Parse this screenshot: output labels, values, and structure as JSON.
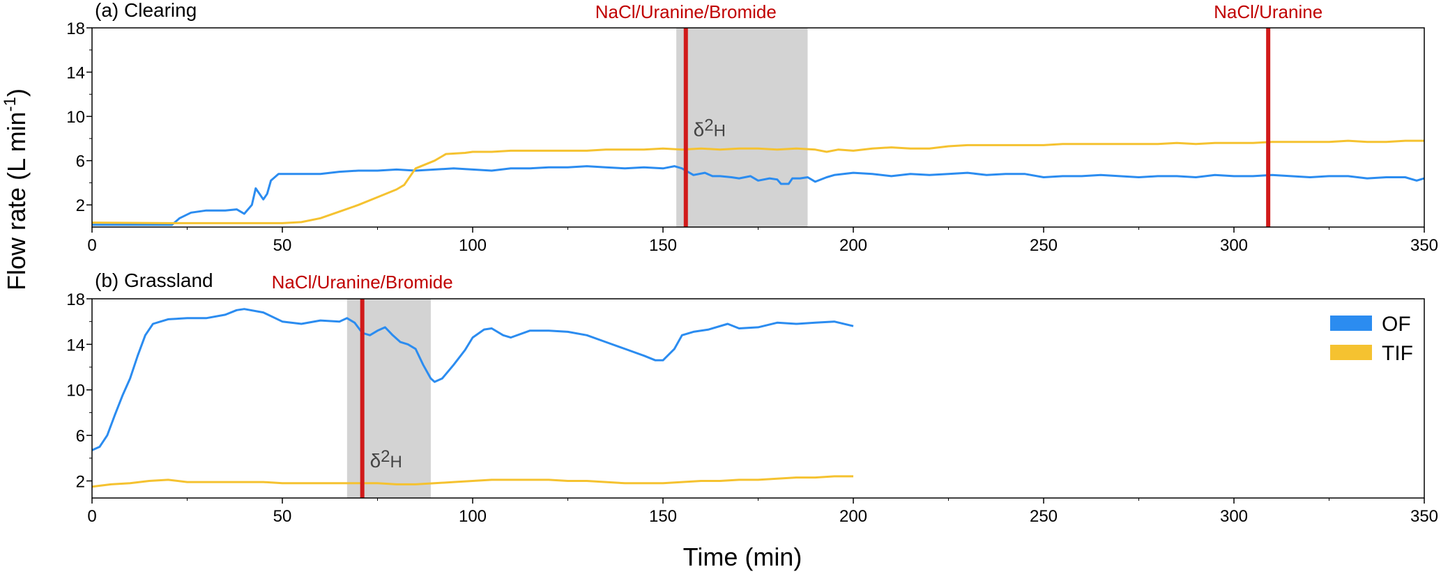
{
  "figure": {
    "ylabel_main": "Flow rate (L min",
    "ylabel_sup": "-1",
    "ylabel_close": ")",
    "xlabel": "Time (min)"
  },
  "legend": {
    "items": [
      {
        "label": "OF",
        "color": "#2b8cf0"
      },
      {
        "label": "TIF",
        "color": "#f5c230"
      }
    ]
  },
  "chart_data": [
    {
      "type": "line",
      "panel_label": "(a) Clearing",
      "xlim": [
        0,
        350
      ],
      "ylim": [
        0,
        18
      ],
      "xticks": [
        0,
        50,
        100,
        150,
        200,
        250,
        300,
        350
      ],
      "yticks": [
        2,
        6,
        10,
        14,
        18
      ],
      "shaded_region": {
        "x": [
          153.5,
          188
        ],
        "label": "δ",
        "label_sup": "2",
        "label_sub": "H",
        "label_at": [
          158,
          8.2
        ]
      },
      "events": [
        {
          "x": 156,
          "label": "NaCl/Uranine/Bromide"
        },
        {
          "x": 309,
          "label": "NaCl/Uranine"
        }
      ],
      "series": [
        {
          "name": "OF",
          "color": "#2b8cf0",
          "points": [
            [
              0,
              0.2
            ],
            [
              21,
              0.2
            ],
            [
              23,
              0.8
            ],
            [
              26,
              1.3
            ],
            [
              30,
              1.5
            ],
            [
              35,
              1.5
            ],
            [
              38,
              1.6
            ],
            [
              40,
              1.2
            ],
            [
              42,
              2
            ],
            [
              43,
              3.5
            ],
            [
              45,
              2.5
            ],
            [
              46,
              3.0
            ],
            [
              47,
              4.2
            ],
            [
              49,
              4.8
            ],
            [
              55,
              4.8
            ],
            [
              60,
              4.8
            ],
            [
              65,
              5.0
            ],
            [
              70,
              5.1
            ],
            [
              75,
              5.1
            ],
            [
              80,
              5.2
            ],
            [
              85,
              5.1
            ],
            [
              90,
              5.2
            ],
            [
              95,
              5.3
            ],
            [
              100,
              5.2
            ],
            [
              105,
              5.1
            ],
            [
              110,
              5.3
            ],
            [
              115,
              5.3
            ],
            [
              120,
              5.4
            ],
            [
              125,
              5.4
            ],
            [
              130,
              5.5
            ],
            [
              135,
              5.4
            ],
            [
              140,
              5.3
            ],
            [
              145,
              5.4
            ],
            [
              150,
              5.3
            ],
            [
              153,
              5.5
            ],
            [
              155,
              5.3
            ],
            [
              158,
              4.7
            ],
            [
              161,
              4.9
            ],
            [
              163,
              4.6
            ],
            [
              165,
              4.6
            ],
            [
              168,
              4.5
            ],
            [
              170,
              4.4
            ],
            [
              173,
              4.6
            ],
            [
              175,
              4.2
            ],
            [
              178,
              4.4
            ],
            [
              180,
              4.3
            ],
            [
              181,
              3.9
            ],
            [
              183,
              3.9
            ],
            [
              184,
              4.4
            ],
            [
              186,
              4.4
            ],
            [
              188,
              4.5
            ],
            [
              190,
              4.1
            ],
            [
              193,
              4.5
            ],
            [
              195,
              4.7
            ],
            [
              200,
              4.9
            ],
            [
              205,
              4.8
            ],
            [
              210,
              4.6
            ],
            [
              215,
              4.8
            ],
            [
              220,
              4.7
            ],
            [
              225,
              4.8
            ],
            [
              230,
              4.9
            ],
            [
              235,
              4.7
            ],
            [
              240,
              4.8
            ],
            [
              245,
              4.8
            ],
            [
              250,
              4.5
            ],
            [
              255,
              4.6
            ],
            [
              260,
              4.6
            ],
            [
              265,
              4.7
            ],
            [
              270,
              4.6
            ],
            [
              275,
              4.5
            ],
            [
              280,
              4.6
            ],
            [
              285,
              4.6
            ],
            [
              290,
              4.5
            ],
            [
              295,
              4.7
            ],
            [
              300,
              4.6
            ],
            [
              305,
              4.6
            ],
            [
              310,
              4.7
            ],
            [
              315,
              4.6
            ],
            [
              320,
              4.5
            ],
            [
              325,
              4.6
            ],
            [
              330,
              4.6
            ],
            [
              335,
              4.4
            ],
            [
              340,
              4.5
            ],
            [
              345,
              4.5
            ],
            [
              348,
              4.2
            ],
            [
              350,
              4.4
            ]
          ]
        },
        {
          "name": "TIF",
          "color": "#f5c230",
          "points": [
            [
              0,
              0.4
            ],
            [
              20,
              0.35
            ],
            [
              30,
              0.35
            ],
            [
              40,
              0.35
            ],
            [
              50,
              0.35
            ],
            [
              55,
              0.45
            ],
            [
              60,
              0.8
            ],
            [
              65,
              1.4
            ],
            [
              70,
              2.0
            ],
            [
              75,
              2.7
            ],
            [
              80,
              3.4
            ],
            [
              82,
              3.8
            ],
            [
              85,
              5.3
            ],
            [
              90,
              6.0
            ],
            [
              93,
              6.6
            ],
            [
              98,
              6.7
            ],
            [
              100,
              6.8
            ],
            [
              105,
              6.8
            ],
            [
              110,
              6.9
            ],
            [
              115,
              6.9
            ],
            [
              120,
              6.9
            ],
            [
              125,
              6.9
            ],
            [
              130,
              6.9
            ],
            [
              135,
              7.0
            ],
            [
              140,
              7.0
            ],
            [
              145,
              7.0
            ],
            [
              150,
              7.1
            ],
            [
              155,
              7.0
            ],
            [
              160,
              7.1
            ],
            [
              165,
              7.0
            ],
            [
              170,
              7.1
            ],
            [
              175,
              7.1
            ],
            [
              180,
              7.0
            ],
            [
              185,
              7.1
            ],
            [
              190,
              7.0
            ],
            [
              193,
              6.8
            ],
            [
              196,
              7.0
            ],
            [
              200,
              6.9
            ],
            [
              205,
              7.1
            ],
            [
              210,
              7.2
            ],
            [
              215,
              7.1
            ],
            [
              220,
              7.1
            ],
            [
              225,
              7.3
            ],
            [
              230,
              7.4
            ],
            [
              235,
              7.4
            ],
            [
              240,
              7.4
            ],
            [
              245,
              7.4
            ],
            [
              250,
              7.4
            ],
            [
              255,
              7.5
            ],
            [
              260,
              7.5
            ],
            [
              265,
              7.5
            ],
            [
              270,
              7.5
            ],
            [
              275,
              7.5
            ],
            [
              280,
              7.5
            ],
            [
              285,
              7.6
            ],
            [
              290,
              7.5
            ],
            [
              295,
              7.6
            ],
            [
              300,
              7.6
            ],
            [
              305,
              7.6
            ],
            [
              310,
              7.7
            ],
            [
              315,
              7.7
            ],
            [
              320,
              7.7
            ],
            [
              325,
              7.7
            ],
            [
              330,
              7.8
            ],
            [
              335,
              7.7
            ],
            [
              340,
              7.7
            ],
            [
              345,
              7.8
            ],
            [
              350,
              7.8
            ]
          ]
        }
      ]
    },
    {
      "type": "line",
      "panel_label": "(b) Grassland",
      "xlim": [
        0,
        350
      ],
      "ylim": [
        0.5,
        18
      ],
      "xticks": [
        0,
        50,
        100,
        150,
        200,
        250,
        300,
        350
      ],
      "yticks": [
        2,
        6,
        10,
        14,
        18
      ],
      "shaded_region": {
        "x": [
          67,
          89
        ],
        "label": "δ",
        "label_sup": "2",
        "label_sub": "H",
        "label_at": [
          73,
          3.2
        ]
      },
      "events": [
        {
          "x": 71,
          "label": "NaCl/Uranine/Bromide"
        }
      ],
      "series": [
        {
          "name": "OF",
          "color": "#2b8cf0",
          "points": [
            [
              0,
              4.7
            ],
            [
              2,
              5.0
            ],
            [
              4,
              6.0
            ],
            [
              6,
              7.8
            ],
            [
              8,
              9.5
            ],
            [
              10,
              11.0
            ],
            [
              12,
              13.0
            ],
            [
              14,
              14.8
            ],
            [
              16,
              15.8
            ],
            [
              18,
              16.0
            ],
            [
              20,
              16.2
            ],
            [
              25,
              16.3
            ],
            [
              30,
              16.3
            ],
            [
              35,
              16.6
            ],
            [
              38,
              17.0
            ],
            [
              40,
              17.1
            ],
            [
              45,
              16.8
            ],
            [
              50,
              16.0
            ],
            [
              55,
              15.8
            ],
            [
              60,
              16.1
            ],
            [
              65,
              16.0
            ],
            [
              67,
              16.3
            ],
            [
              69,
              15.9
            ],
            [
              71,
              15.0
            ],
            [
              73,
              14.8
            ],
            [
              75,
              15.2
            ],
            [
              77,
              15.5
            ],
            [
              79,
              14.8
            ],
            [
              81,
              14.2
            ],
            [
              83,
              14.0
            ],
            [
              85,
              13.6
            ],
            [
              87,
              12.2
            ],
            [
              89,
              11.0
            ],
            [
              90,
              10.7
            ],
            [
              92,
              11.0
            ],
            [
              95,
              12.2
            ],
            [
              98,
              13.5
            ],
            [
              100,
              14.6
            ],
            [
              103,
              15.3
            ],
            [
              105,
              15.4
            ],
            [
              108,
              14.8
            ],
            [
              110,
              14.6
            ],
            [
              115,
              15.2
            ],
            [
              120,
              15.2
            ],
            [
              125,
              15.1
            ],
            [
              130,
              14.8
            ],
            [
              135,
              14.2
            ],
            [
              140,
              13.6
            ],
            [
              145,
              13.0
            ],
            [
              148,
              12.6
            ],
            [
              150,
              12.6
            ],
            [
              153,
              13.6
            ],
            [
              155,
              14.8
            ],
            [
              158,
              15.1
            ],
            [
              162,
              15.3
            ],
            [
              167,
              15.8
            ],
            [
              170,
              15.4
            ],
            [
              175,
              15.5
            ],
            [
              180,
              15.9
            ],
            [
              185,
              15.8
            ],
            [
              190,
              15.9
            ],
            [
              195,
              16.0
            ],
            [
              200,
              15.6
            ]
          ]
        },
        {
          "name": "TIF",
          "color": "#f5c230",
          "points": [
            [
              0,
              1.5
            ],
            [
              5,
              1.7
            ],
            [
              10,
              1.8
            ],
            [
              15,
              2.0
            ],
            [
              20,
              2.1
            ],
            [
              25,
              1.9
            ],
            [
              30,
              1.9
            ],
            [
              35,
              1.9
            ],
            [
              40,
              1.9
            ],
            [
              45,
              1.9
            ],
            [
              50,
              1.8
            ],
            [
              55,
              1.8
            ],
            [
              60,
              1.8
            ],
            [
              65,
              1.8
            ],
            [
              70,
              1.8
            ],
            [
              75,
              1.8
            ],
            [
              80,
              1.7
            ],
            [
              85,
              1.7
            ],
            [
              90,
              1.8
            ],
            [
              95,
              1.9
            ],
            [
              100,
              2.0
            ],
            [
              105,
              2.1
            ],
            [
              110,
              2.1
            ],
            [
              115,
              2.1
            ],
            [
              120,
              2.1
            ],
            [
              125,
              2.0
            ],
            [
              130,
              2.0
            ],
            [
              135,
              1.9
            ],
            [
              140,
              1.8
            ],
            [
              145,
              1.8
            ],
            [
              150,
              1.8
            ],
            [
              155,
              1.9
            ],
            [
              160,
              2.0
            ],
            [
              165,
              2.0
            ],
            [
              170,
              2.1
            ],
            [
              175,
              2.1
            ],
            [
              180,
              2.2
            ],
            [
              185,
              2.3
            ],
            [
              190,
              2.3
            ],
            [
              195,
              2.4
            ],
            [
              200,
              2.4
            ]
          ]
        }
      ]
    }
  ]
}
